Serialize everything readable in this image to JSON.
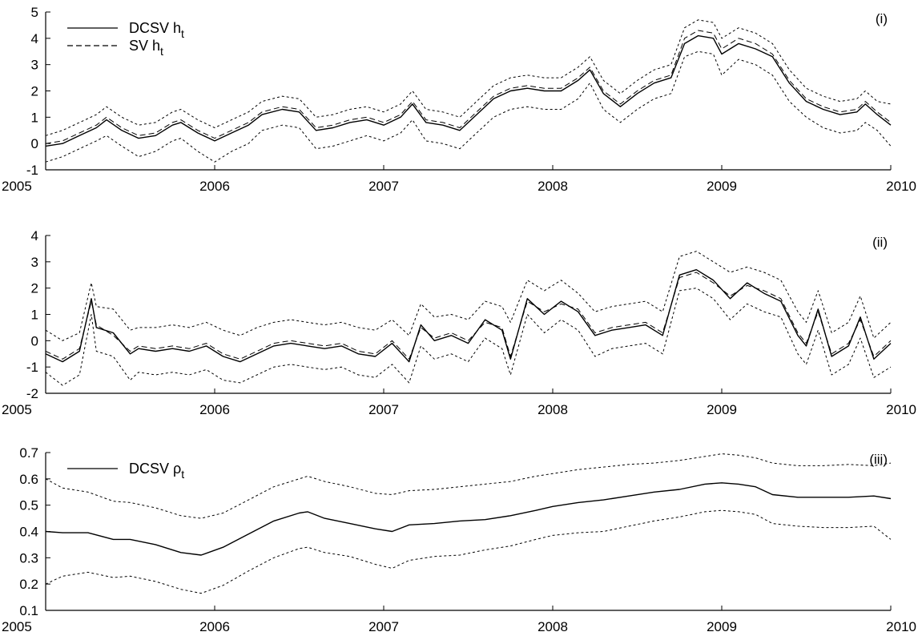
{
  "chart_data": [
    {
      "type": "line",
      "panel_label": "(i)",
      "xlim": [
        2005,
        2010
      ],
      "ylim": [
        -1,
        5
      ],
      "x_ticks": [
        "2005",
        "2006",
        "2007",
        "2008",
        "2009",
        "2010"
      ],
      "y_ticks": [
        "-1",
        "0",
        "1",
        "2",
        "3",
        "4",
        "5"
      ],
      "legend": {
        "placement": "top-left",
        "entries": [
          {
            "series": 0,
            "text": "DCSV h",
            "sub": "t"
          },
          {
            "series": 1,
            "text": "SV h",
            "sub": "t"
          }
        ]
      },
      "x": [
        2005.0,
        2005.1,
        2005.2,
        2005.3,
        2005.36,
        2005.45,
        2005.55,
        2005.65,
        2005.75,
        2005.8,
        2005.9,
        2006.0,
        2006.1,
        2006.2,
        2006.28,
        2006.4,
        2006.5,
        2006.6,
        2006.7,
        2006.8,
        2006.9,
        2007.0,
        2007.1,
        2007.17,
        2007.25,
        2007.35,
        2007.45,
        2007.55,
        2007.65,
        2007.75,
        2007.85,
        2007.95,
        2008.05,
        2008.15,
        2008.22,
        2008.3,
        2008.4,
        2008.5,
        2008.6,
        2008.7,
        2008.78,
        2008.86,
        2008.95,
        2009.0,
        2009.1,
        2009.2,
        2009.3,
        2009.4,
        2009.5,
        2009.6,
        2009.7,
        2009.8,
        2009.85,
        2009.92,
        2010.0
      ],
      "series": [
        {
          "name": "DCSV h_t",
          "style": "solid",
          "values": [
            -0.1,
            0.0,
            0.3,
            0.6,
            0.9,
            0.5,
            0.2,
            0.3,
            0.7,
            0.8,
            0.4,
            0.1,
            0.4,
            0.7,
            1.1,
            1.3,
            1.2,
            0.5,
            0.6,
            0.8,
            0.9,
            0.7,
            1.0,
            1.5,
            0.8,
            0.7,
            0.5,
            1.1,
            1.7,
            2.0,
            2.1,
            2.0,
            2.0,
            2.4,
            2.8,
            1.9,
            1.4,
            1.9,
            2.3,
            2.5,
            3.8,
            4.1,
            4.0,
            3.4,
            3.8,
            3.6,
            3.3,
            2.3,
            1.6,
            1.3,
            1.1,
            1.2,
            1.5,
            1.1,
            0.7
          ]
        },
        {
          "name": "SV h_t",
          "style": "dashed",
          "values": [
            0.0,
            0.1,
            0.4,
            0.7,
            1.0,
            0.6,
            0.3,
            0.4,
            0.8,
            0.9,
            0.5,
            0.2,
            0.5,
            0.8,
            1.2,
            1.4,
            1.3,
            0.6,
            0.7,
            0.9,
            1.0,
            0.8,
            1.1,
            1.6,
            0.9,
            0.8,
            0.6,
            1.2,
            1.8,
            2.1,
            2.2,
            2.1,
            2.1,
            2.5,
            2.9,
            2.0,
            1.5,
            2.0,
            2.4,
            2.6,
            4.0,
            4.3,
            4.2,
            3.6,
            4.0,
            3.8,
            3.4,
            2.4,
            1.7,
            1.4,
            1.2,
            1.3,
            1.6,
            1.2,
            0.8
          ]
        },
        {
          "name": "upper band",
          "style": "dotted",
          "values": [
            0.3,
            0.5,
            0.8,
            1.1,
            1.4,
            1.0,
            0.7,
            0.8,
            1.2,
            1.3,
            0.9,
            0.6,
            0.9,
            1.2,
            1.6,
            1.8,
            1.7,
            1.0,
            1.1,
            1.3,
            1.4,
            1.2,
            1.5,
            2.0,
            1.3,
            1.2,
            1.0,
            1.6,
            2.2,
            2.5,
            2.6,
            2.5,
            2.5,
            2.9,
            3.3,
            2.4,
            1.9,
            2.4,
            2.8,
            3.0,
            4.4,
            4.7,
            4.6,
            4.0,
            4.4,
            4.2,
            3.8,
            2.8,
            2.1,
            1.8,
            1.6,
            1.7,
            2.0,
            1.6,
            1.5
          ]
        },
        {
          "name": "lower band",
          "style": "dotted",
          "values": [
            -0.7,
            -0.5,
            -0.2,
            0.1,
            0.3,
            -0.1,
            -0.5,
            -0.3,
            0.1,
            0.2,
            -0.3,
            -0.7,
            -0.3,
            0.0,
            0.5,
            0.7,
            0.6,
            -0.2,
            -0.1,
            0.1,
            0.3,
            0.1,
            0.4,
            0.9,
            0.1,
            0.0,
            -0.2,
            0.4,
            1.0,
            1.3,
            1.4,
            1.3,
            1.3,
            1.7,
            2.3,
            1.3,
            0.8,
            1.3,
            1.7,
            1.9,
            3.3,
            3.5,
            3.4,
            2.6,
            3.2,
            3.0,
            2.6,
            1.6,
            1.0,
            0.6,
            0.4,
            0.5,
            0.8,
            0.5,
            -0.1
          ]
        }
      ]
    },
    {
      "type": "line",
      "panel_label": "(ii)",
      "xlim": [
        2005,
        2010
      ],
      "ylim": [
        -2,
        4
      ],
      "x_ticks": [
        "2005",
        "2006",
        "2007",
        "2008",
        "2009",
        "2010"
      ],
      "y_ticks": [
        "-2",
        "-1",
        "0",
        "1",
        "2",
        "3",
        "4"
      ],
      "x": [
        2005.0,
        2005.1,
        2005.2,
        2005.27,
        2005.3,
        2005.4,
        2005.5,
        2005.55,
        2005.65,
        2005.75,
        2005.85,
        2005.95,
        2006.05,
        2006.15,
        2006.25,
        2006.35,
        2006.45,
        2006.55,
        2006.65,
        2006.75,
        2006.85,
        2006.95,
        2007.05,
        2007.15,
        2007.22,
        2007.3,
        2007.4,
        2007.5,
        2007.6,
        2007.7,
        2007.75,
        2007.85,
        2007.95,
        2008.05,
        2008.15,
        2008.25,
        2008.35,
        2008.45,
        2008.55,
        2008.65,
        2008.75,
        2008.85,
        2008.95,
        2009.05,
        2009.15,
        2009.25,
        2009.35,
        2009.45,
        2009.5,
        2009.57,
        2009.65,
        2009.75,
        2009.82,
        2009.9,
        2010.0
      ],
      "series": [
        {
          "name": "DCSV h_t",
          "style": "solid",
          "values": [
            -0.5,
            -0.8,
            -0.4,
            1.6,
            0.5,
            0.3,
            -0.5,
            -0.3,
            -0.4,
            -0.3,
            -0.4,
            -0.2,
            -0.6,
            -0.8,
            -0.5,
            -0.2,
            -0.1,
            -0.2,
            -0.3,
            -0.2,
            -0.5,
            -0.6,
            -0.1,
            -0.8,
            0.6,
            0.0,
            0.2,
            -0.1,
            0.8,
            0.4,
            -0.7,
            1.6,
            1.0,
            1.5,
            1.1,
            0.2,
            0.4,
            0.5,
            0.6,
            0.2,
            2.5,
            2.7,
            2.3,
            1.6,
            2.2,
            1.8,
            1.5,
            0.2,
            -0.2,
            1.2,
            -0.6,
            -0.2,
            0.9,
            -0.7,
            -0.1
          ]
        },
        {
          "name": "SV h_t",
          "style": "dashed",
          "values": [
            -0.4,
            -0.7,
            -0.3,
            1.5,
            0.6,
            0.2,
            -0.4,
            -0.2,
            -0.3,
            -0.2,
            -0.3,
            -0.1,
            -0.5,
            -0.7,
            -0.4,
            -0.1,
            0.0,
            -0.1,
            -0.2,
            -0.1,
            -0.4,
            -0.5,
            0.0,
            -0.7,
            0.5,
            0.1,
            0.3,
            0.0,
            0.7,
            0.5,
            -0.6,
            1.5,
            1.1,
            1.4,
            1.2,
            0.3,
            0.5,
            0.6,
            0.7,
            0.3,
            2.4,
            2.6,
            2.2,
            1.7,
            2.1,
            1.9,
            1.6,
            0.3,
            -0.1,
            1.1,
            -0.5,
            -0.1,
            0.8,
            -0.6,
            0.0
          ]
        },
        {
          "name": "upper band",
          "style": "dotted",
          "values": [
            0.4,
            0.0,
            0.3,
            2.2,
            1.3,
            1.2,
            0.4,
            0.5,
            0.5,
            0.6,
            0.5,
            0.7,
            0.4,
            0.2,
            0.5,
            0.7,
            0.8,
            0.7,
            0.6,
            0.7,
            0.5,
            0.4,
            0.8,
            0.2,
            1.4,
            0.9,
            1.0,
            0.8,
            1.5,
            1.3,
            0.7,
            2.3,
            1.9,
            2.3,
            1.8,
            1.1,
            1.3,
            1.4,
            1.5,
            1.1,
            3.2,
            3.4,
            3.0,
            2.6,
            2.8,
            2.6,
            2.3,
            1.1,
            0.7,
            1.9,
            0.3,
            0.7,
            1.7,
            0.1,
            0.7
          ]
        },
        {
          "name": "lower band",
          "style": "dotted",
          "values": [
            -1.2,
            -1.7,
            -1.3,
            1.0,
            -0.4,
            -0.6,
            -1.5,
            -1.2,
            -1.3,
            -1.2,
            -1.3,
            -1.1,
            -1.5,
            -1.6,
            -1.3,
            -1.0,
            -0.9,
            -1.0,
            -1.1,
            -1.0,
            -1.3,
            -1.4,
            -0.9,
            -1.6,
            -0.2,
            -0.7,
            -0.5,
            -0.8,
            0.1,
            -0.3,
            -1.3,
            1.0,
            0.3,
            0.8,
            0.4,
            -0.6,
            -0.3,
            -0.2,
            -0.1,
            -0.5,
            1.9,
            2.0,
            1.6,
            0.8,
            1.4,
            1.1,
            0.9,
            -0.5,
            -0.9,
            0.4,
            -1.3,
            -0.9,
            0.1,
            -1.4,
            -1.0
          ]
        }
      ]
    },
    {
      "type": "line",
      "panel_label": "(iii)",
      "xlim": [
        2005,
        2010
      ],
      "ylim": [
        0.1,
        0.7
      ],
      "x_ticks": [
        "2005",
        "2006",
        "2007",
        "2008",
        "2009",
        "2010"
      ],
      "y_ticks": [
        "0.1",
        "0.2",
        "0.3",
        "0.4",
        "0.5",
        "0.6",
        "0.7"
      ],
      "legend": {
        "placement": "top-left",
        "entries": [
          {
            "series": 0,
            "text": "DCSV ρ",
            "sub": "t"
          }
        ]
      },
      "x": [
        2005.0,
        2005.1,
        2005.25,
        2005.4,
        2005.5,
        2005.65,
        2005.8,
        2005.92,
        2006.05,
        2006.2,
        2006.35,
        2006.5,
        2006.55,
        2006.65,
        2006.8,
        2006.95,
        2007.05,
        2007.15,
        2007.3,
        2007.45,
        2007.6,
        2007.75,
        2007.9,
        2008.0,
        2008.15,
        2008.3,
        2008.45,
        2008.6,
        2008.75,
        2008.9,
        2009.0,
        2009.1,
        2009.2,
        2009.3,
        2009.45,
        2009.6,
        2009.75,
        2009.9,
        2010.0
      ],
      "series": [
        {
          "name": "DCSV ρ_t",
          "style": "solid",
          "values": [
            0.4,
            0.395,
            0.395,
            0.37,
            0.37,
            0.35,
            0.32,
            0.31,
            0.34,
            0.39,
            0.44,
            0.47,
            0.475,
            0.45,
            0.43,
            0.41,
            0.4,
            0.425,
            0.43,
            0.44,
            0.445,
            0.46,
            0.48,
            0.495,
            0.51,
            0.52,
            0.535,
            0.55,
            0.56,
            0.58,
            0.585,
            0.58,
            0.57,
            0.54,
            0.53,
            0.53,
            0.53,
            0.535,
            0.525
          ]
        },
        {
          "name": "upper band",
          "style": "dotted",
          "values": [
            0.6,
            0.565,
            0.55,
            0.515,
            0.51,
            0.49,
            0.46,
            0.45,
            0.47,
            0.52,
            0.57,
            0.6,
            0.61,
            0.59,
            0.57,
            0.545,
            0.54,
            0.555,
            0.56,
            0.57,
            0.58,
            0.59,
            0.61,
            0.62,
            0.635,
            0.645,
            0.655,
            0.66,
            0.67,
            0.685,
            0.695,
            0.69,
            0.68,
            0.66,
            0.65,
            0.65,
            0.655,
            0.65,
            0.66
          ]
        },
        {
          "name": "lower band",
          "style": "dotted",
          "values": [
            0.2,
            0.23,
            0.245,
            0.225,
            0.23,
            0.21,
            0.18,
            0.165,
            0.195,
            0.25,
            0.3,
            0.335,
            0.34,
            0.32,
            0.305,
            0.275,
            0.26,
            0.29,
            0.305,
            0.31,
            0.33,
            0.345,
            0.37,
            0.385,
            0.395,
            0.4,
            0.42,
            0.44,
            0.455,
            0.475,
            0.48,
            0.475,
            0.465,
            0.43,
            0.42,
            0.415,
            0.415,
            0.42,
            0.37
          ]
        }
      ]
    }
  ]
}
